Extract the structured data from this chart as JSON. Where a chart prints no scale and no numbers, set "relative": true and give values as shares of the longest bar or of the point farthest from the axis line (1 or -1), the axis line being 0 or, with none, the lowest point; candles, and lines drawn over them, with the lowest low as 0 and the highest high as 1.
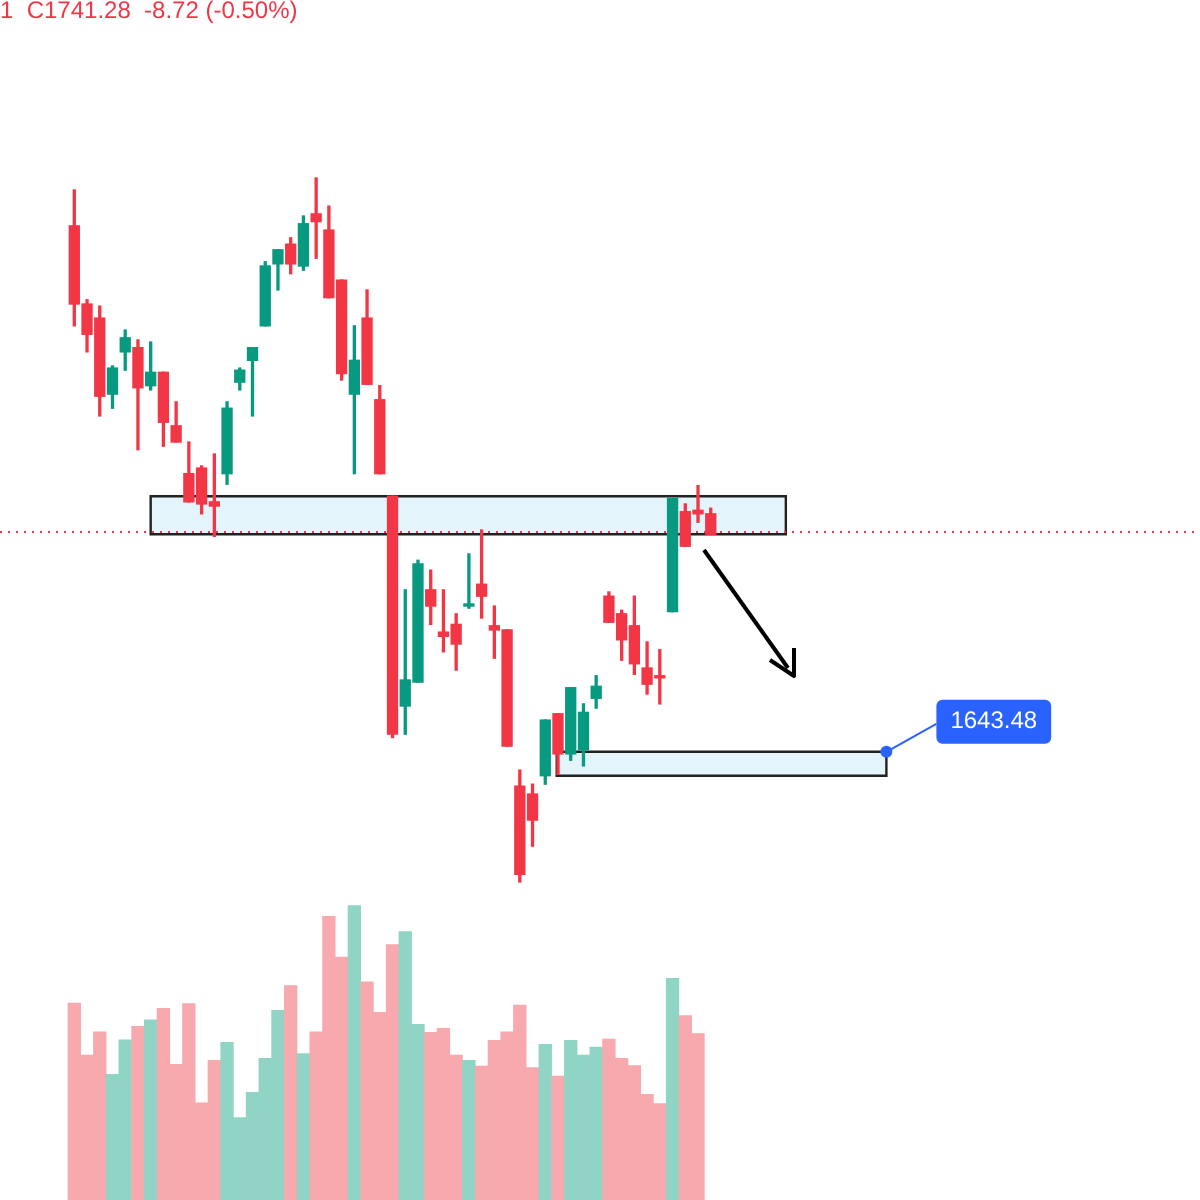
{
  "chart_data": [
    {
      "type": "candlestick",
      "relative": true,
      "legend": false,
      "categories": [
        null,
        null,
        null,
        null,
        null,
        null,
        null,
        null,
        null,
        null,
        null,
        null,
        null,
        null,
        null,
        null,
        null,
        null,
        null,
        null,
        null,
        null,
        null,
        null,
        null,
        null,
        null,
        null,
        null,
        null,
        null,
        null,
        null,
        null,
        null,
        null,
        null,
        null,
        null,
        null,
        null,
        null,
        null,
        null,
        null,
        null,
        null,
        null,
        null,
        null,
        null
      ],
      "ohlc": [
        [
          0.932,
          0.983,
          0.79,
          0.821
        ],
        [
          0.821,
          0.827,
          0.753,
          0.778
        ],
        [
          0.801,
          0.818,
          0.662,
          0.69
        ],
        [
          0.693,
          0.733,
          0.673,
          0.73
        ],
        [
          0.753,
          0.784,
          0.727,
          0.773
        ],
        [
          0.759,
          0.77,
          0.614,
          0.702
        ],
        [
          0.705,
          0.767,
          0.699,
          0.724
        ],
        [
          0.724,
          0.724,
          0.619,
          0.653
        ],
        [
          0.648,
          0.682,
          0.625,
          0.625
        ],
        [
          0.58,
          0.625,
          0.54,
          0.54
        ],
        [
          0.588,
          0.591,
          0.523,
          0.537
        ],
        [
          0.54,
          0.608,
          0.491,
          0.534
        ],
        [
          0.58,
          0.682,
          0.565,
          0.673
        ],
        [
          0.71,
          0.73,
          0.699,
          0.727
        ],
        [
          0.741,
          0.759,
          0.662,
          0.759
        ],
        [
          0.79,
          0.881,
          0.79,
          0.875
        ],
        [
          0.878,
          0.898,
          0.841,
          0.898
        ],
        [
          0.906,
          0.915,
          0.864,
          0.878
        ],
        [
          0.875,
          0.946,
          0.869,
          0.935
        ],
        [
          0.949,
          1.0,
          0.886,
          0.938
        ],
        [
          0.926,
          0.96,
          0.83,
          0.83
        ],
        [
          0.855,
          0.855,
          0.713,
          0.722
        ],
        [
          0.693,
          0.79,
          0.58,
          0.741
        ],
        [
          0.801,
          0.841,
          0.707,
          0.707
        ],
        [
          0.685,
          0.705,
          0.58,
          0.58
        ],
        [
          0.548,
          0.548,
          0.205,
          0.21
        ],
        [
          0.25,
          0.415,
          0.21,
          0.287
        ],
        [
          0.284,
          0.457,
          0.284,
          0.452
        ],
        [
          0.415,
          0.443,
          0.366,
          0.392
        ],
        [
          0.355,
          0.415,
          0.327,
          0.349
        ],
        [
          0.366,
          0.381,
          0.301,
          0.338
        ],
        [
          0.392,
          0.466,
          0.389,
          0.395
        ],
        [
          0.423,
          0.5,
          0.375,
          0.406
        ],
        [
          0.364,
          0.392,
          0.318,
          0.358
        ],
        [
          0.358,
          0.358,
          0.193,
          0.193
        ],
        [
          0.136,
          0.159,
          0.0,
          0.011
        ],
        [
          0.125,
          0.139,
          0.051,
          0.088
        ],
        [
          0.151,
          0.23,
          0.139,
          0.23
        ],
        [
          0.239,
          0.239,
          0.153,
          0.182
        ],
        [
          0.182,
          0.276,
          0.173,
          0.276
        ],
        [
          0.188,
          0.253,
          0.165,
          0.241
        ],
        [
          0.261,
          0.293,
          0.247,
          0.278
        ],
        [
          0.406,
          0.412,
          0.369,
          0.369
        ],
        [
          0.381,
          0.386,
          0.315,
          0.344
        ],
        [
          0.364,
          0.406,
          0.295,
          0.31
        ],
        [
          0.304,
          0.341,
          0.267,
          0.281
        ],
        [
          0.293,
          0.33,
          0.253,
          0.29
        ],
        [
          0.384,
          0.545,
          0.384,
          0.545
        ],
        [
          0.526,
          0.537,
          0.477,
          0.477
        ],
        [
          0.528,
          0.563,
          0.511,
          0.523
        ],
        [
          0.523,
          0.531,
          0.494,
          0.494
        ]
      ],
      "colors": [
        "#f23645",
        "#f23645",
        "#f23645",
        "#089981",
        "#089981",
        "#f23645",
        "#089981",
        "#f23645",
        "#f23645",
        "#f23645",
        "#f23645",
        "#f23645",
        "#089981",
        "#089981",
        "#089981",
        "#089981",
        "#089981",
        "#f23645",
        "#089981",
        "#f23645",
        "#f23645",
        "#f23645",
        "#089981",
        "#f23645",
        "#f23645",
        "#f23645",
        "#089981",
        "#089981",
        "#f23645",
        "#f23645",
        "#f23645",
        "#089981",
        "#f23645",
        "#f23645",
        "#f23645",
        "#f23645",
        "#f23645",
        "#089981",
        "#f23645",
        "#089981",
        "#089981",
        "#089981",
        "#f23645",
        "#f23645",
        "#f23645",
        "#f23645",
        "#f23645",
        "#089981",
        "#f23645",
        "#f23645",
        "#f23645"
      ],
      "ref_lines": [
        {
          "axis": "y",
          "value": 0.497,
          "color": "#f23645",
          "line_style": "dotted"
        }
      ],
      "bands": [
        {
          "axis": "y",
          "from": 0.494,
          "to": 0.548,
          "color": "#e3f5fa"
        },
        {
          "axis": "y",
          "from": 0.151,
          "to": 0.185,
          "color": "#e3f5fa"
        }
      ],
      "annotations": [
        "1  C1741.28  -8.72 (-0.50%)",
        "1643.48"
      ]
    },
    {
      "type": "bar",
      "relative": true,
      "legend": false,
      "categories": [
        null,
        null,
        null,
        null,
        null,
        null,
        null,
        null,
        null,
        null,
        null,
        null,
        null,
        null,
        null,
        null,
        null,
        null,
        null,
        null,
        null,
        null,
        null,
        null,
        null,
        null,
        null,
        null,
        null,
        null,
        null,
        null,
        null,
        null,
        null,
        null,
        null,
        null,
        null,
        null,
        null,
        null,
        null,
        null,
        null,
        null,
        null,
        null,
        null,
        null,
        null
      ],
      "values": [
        0.669,
        0.492,
        0.571,
        0.426,
        0.544,
        0.59,
        0.612,
        0.651,
        0.46,
        0.667,
        0.329,
        0.474,
        0.535,
        0.279,
        0.365,
        0.481,
        0.644,
        0.728,
        0.497,
        0.571,
        0.964,
        0.825,
        1,
        0.741,
        0.637,
        0.868,
        0.912,
        0.596,
        0.569,
        0.583,
        0.492,
        0.474,
        0.454,
        0.542,
        0.571,
        0.662,
        0.449,
        0.528,
        0.42,
        0.542,
        0.492,
        0.519,
        0.546,
        0.481,
        0.456,
        0.358,
        0.327,
        0.753,
        0.626,
        0.565,
        null
      ],
      "colors": [
        "#f7a9ae",
        "#f7a9ae",
        "#f7a9ae",
        "#8fd4c5",
        "#8fd4c5",
        "#f7a9ae",
        "#8fd4c5",
        "#f7a9ae",
        "#f7a9ae",
        "#f7a9ae",
        "#f7a9ae",
        "#f7a9ae",
        "#8fd4c5",
        "#8fd4c5",
        "#8fd4c5",
        "#8fd4c5",
        "#8fd4c5",
        "#f7a9ae",
        "#8fd4c5",
        "#f7a9ae",
        "#f7a9ae",
        "#f7a9ae",
        "#8fd4c5",
        "#f7a9ae",
        "#f7a9ae",
        "#f7a9ae",
        "#8fd4c5",
        "#8fd4c5",
        "#f7a9ae",
        "#f7a9ae",
        "#f7a9ae",
        "#8fd4c5",
        "#f7a9ae",
        "#f7a9ae",
        "#f7a9ae",
        "#f7a9ae",
        "#f7a9ae",
        "#8fd4c5",
        "#f7a9ae",
        "#8fd4c5",
        "#8fd4c5",
        "#8fd4c5",
        "#f7a9ae",
        "#f7a9ae",
        "#f7a9ae",
        "#f7a9ae",
        "#f7a9ae",
        "#8fd4c5",
        "#f7a9ae",
        "#f7a9ae",
        "#f7a9ae"
      ]
    }
  ]
}
